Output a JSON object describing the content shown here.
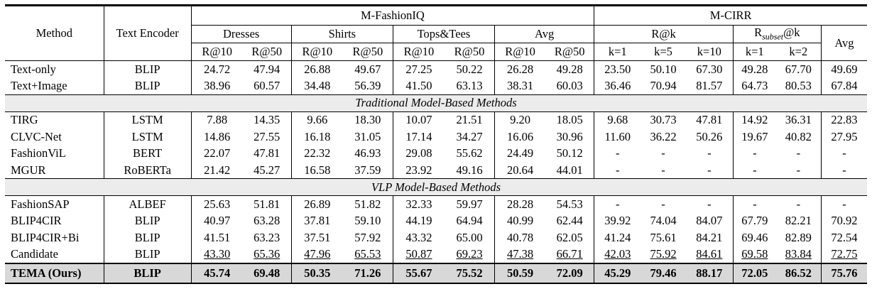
{
  "header": {
    "method": "Method",
    "text_encoder": "Text Encoder",
    "group_fashioniq": "M-FashionIQ",
    "group_cirr": "M-CIRR",
    "dresses": "Dresses",
    "shirts": "Shirts",
    "tops": "Tops&Tees",
    "avg_fiq": "Avg",
    "rk": "R@k",
    "rsubset_pre": "R",
    "rsubset_sub": "subset",
    "rsubset_post": "@k",
    "avg_cirr": "Avg",
    "r10": "R@10",
    "r50": "R@50",
    "k1": "k=1",
    "k5": "k=5",
    "k10": "k=10",
    "k2": "k=2"
  },
  "sections": {
    "traditional": "Traditional Model-Based Methods",
    "vlp": "VLP Model-Based Methods"
  },
  "rows": [
    {
      "method": "Text-only",
      "encoder": "BLIP",
      "v": [
        "24.72",
        "47.94",
        "26.88",
        "49.67",
        "27.25",
        "50.22",
        "26.28",
        "49.28",
        "23.50",
        "50.10",
        "67.30",
        "49.28",
        "67.70",
        "49.69"
      ]
    },
    {
      "method": "Text+Image",
      "encoder": "BLIP",
      "v": [
        "38.96",
        "60.57",
        "34.48",
        "56.39",
        "41.50",
        "63.13",
        "38.31",
        "60.03",
        "36.46",
        "70.94",
        "81.57",
        "64.73",
        "80.53",
        "67.84"
      ]
    },
    {
      "method": "TIRG",
      "encoder": "LSTM",
      "v": [
        "7.88",
        "14.35",
        "9.66",
        "18.30",
        "10.07",
        "21.51",
        "9.20",
        "18.05",
        "9.68",
        "30.73",
        "47.81",
        "14.92",
        "36.31",
        "22.83"
      ]
    },
    {
      "method": "CLVC-Net",
      "encoder": "LSTM",
      "v": [
        "14.86",
        "27.55",
        "16.18",
        "31.05",
        "17.14",
        "34.27",
        "16.06",
        "30.96",
        "11.60",
        "36.22",
        "50.26",
        "19.67",
        "40.82",
        "27.95"
      ]
    },
    {
      "method": "FashionViL",
      "encoder": "BERT",
      "v": [
        "22.07",
        "47.81",
        "22.32",
        "46.93",
        "29.08",
        "55.62",
        "24.49",
        "50.12",
        "-",
        "-",
        "-",
        "-",
        "-",
        "-"
      ]
    },
    {
      "method": "MGUR",
      "encoder": "RoBERTa",
      "v": [
        "21.42",
        "45.27",
        "16.58",
        "37.59",
        "23.92",
        "49.16",
        "20.64",
        "44.01",
        "-",
        "-",
        "-",
        "-",
        "-",
        "-"
      ]
    },
    {
      "method": "FashionSAP",
      "encoder": "ALBEF",
      "v": [
        "25.63",
        "51.81",
        "26.89",
        "51.82",
        "32.33",
        "59.97",
        "28.28",
        "54.53",
        "-",
        "-",
        "-",
        "-",
        "-",
        "-"
      ]
    },
    {
      "method": "BLIP4CIR",
      "encoder": "BLIP",
      "v": [
        "40.97",
        "63.28",
        "37.81",
        "59.10",
        "44.19",
        "64.94",
        "40.99",
        "62.44",
        "39.92",
        "74.04",
        "84.07",
        "67.79",
        "82.21",
        "70.92"
      ]
    },
    {
      "method": "BLIP4CIR+Bi",
      "encoder": "BLIP",
      "v": [
        "41.51",
        "63.23",
        "37.51",
        "57.92",
        "43.32",
        "65.00",
        "40.78",
        "62.05",
        "41.24",
        "75.61",
        "84.21",
        "69.46",
        "82.89",
        "72.54"
      ]
    },
    {
      "method": "Candidate",
      "encoder": "BLIP",
      "v": [
        "43.30",
        "65.36",
        "47.96",
        "65.53",
        "50.87",
        "69.23",
        "47.38",
        "66.71",
        "42.03",
        "75.92",
        "84.61",
        "69.58",
        "83.84",
        "72.75"
      ]
    },
    {
      "method": "TEMA (Ours)",
      "encoder": "BLIP",
      "v": [
        "45.74",
        "69.48",
        "50.35",
        "71.26",
        "55.67",
        "75.52",
        "50.59",
        "72.09",
        "45.29",
        "79.46",
        "88.17",
        "72.05",
        "86.52",
        "75.76"
      ]
    }
  ]
}
